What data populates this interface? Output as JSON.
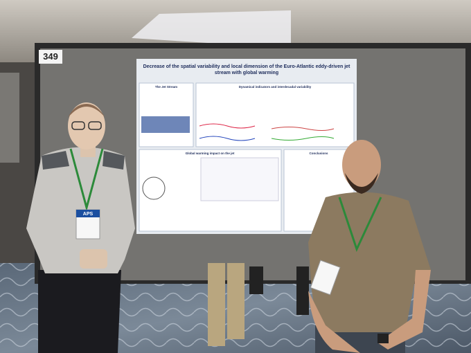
{
  "board": {
    "number": "349"
  },
  "poster": {
    "title": [
      "Decrease of the spatial variability and local dimension of the Euro-Atlantic eddy-driven jet",
      "stream with global warming"
    ],
    "sections": [
      "The Jet Stream",
      "Dynamical indicators and interdecadal variability",
      "Global warming impact on the jet",
      "Conclusions"
    ]
  },
  "badge": {
    "label": "APS"
  }
}
